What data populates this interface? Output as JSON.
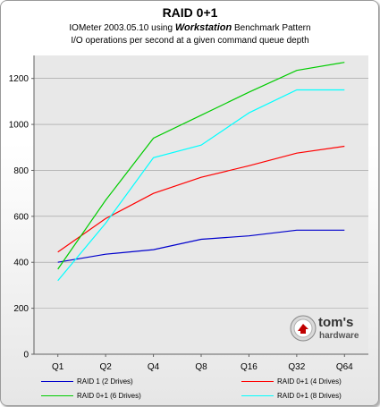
{
  "header": {
    "title": "RAID 0+1",
    "subtitle_line1_prefix": "IOMeter 2003.05.10 using",
    "subtitle_line1_emph": "Workstation",
    "subtitle_line1_suffix": "Benchmark Pattern",
    "subtitle_line2": "I/O operations per second at a given command queue depth"
  },
  "logo": {
    "text_top": "tom's",
    "text_bottom": "hardware",
    "icon": "tomshardware-logo"
  },
  "colors": {
    "plot_bg": "#e8e8e8",
    "grid": "#9a9a9a",
    "axis": "#606060"
  },
  "chart_data": {
    "type": "line",
    "title": "RAID 0+1",
    "categories": [
      "Q1",
      "Q2",
      "Q4",
      "Q8",
      "Q16",
      "Q32",
      "Q64"
    ],
    "ylim": [
      0,
      1300
    ],
    "yticks": [
      0,
      200,
      400,
      600,
      800,
      1000,
      1200
    ],
    "ytick_labels": [
      "0",
      "200",
      "400",
      "600",
      "800",
      "1000",
      "1200"
    ],
    "grid": true,
    "legend_position": "bottom",
    "series": [
      {
        "name": "RAID 1 (2 Drives)",
        "color": "#0000cc",
        "values": [
          400,
          435,
          455,
          500,
          515,
          540,
          540
        ]
      },
      {
        "name": "RAID 0+1 (4 Drives)",
        "color": "#ff0000",
        "values": [
          445,
          590,
          700,
          770,
          820,
          875,
          905
        ]
      },
      {
        "name": "RAID 0+1 (6 Drives)",
        "color": "#00cc00",
        "values": [
          370,
          670,
          940,
          1040,
          1140,
          1235,
          1270
        ]
      },
      {
        "name": "RAID 0+1 (8 Drives)",
        "color": "#00ffff",
        "values": [
          320,
          570,
          855,
          910,
          1050,
          1150,
          1150
        ]
      }
    ]
  }
}
